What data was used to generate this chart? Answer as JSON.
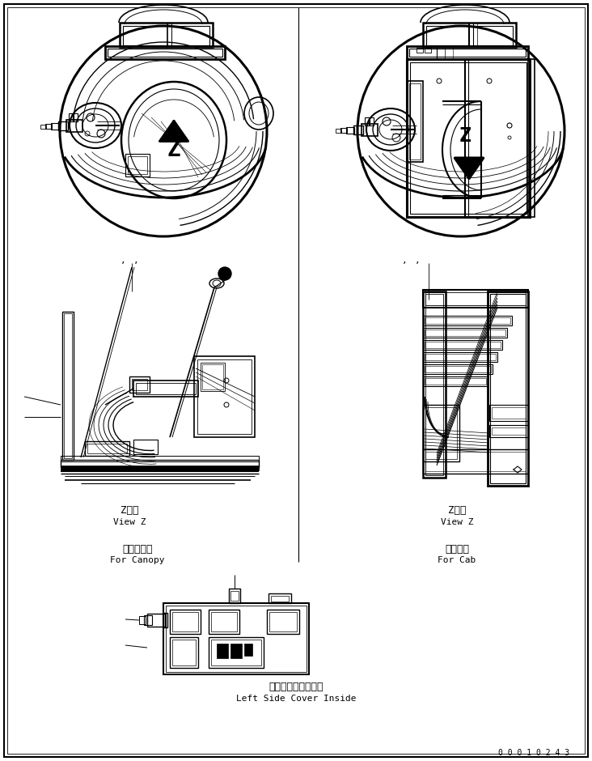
{
  "bg_color": "#ffffff",
  "line_color": "#000000",
  "fig_width": 7.32,
  "fig_height": 9.4,
  "labels": {
    "for_canopy_jp": "キャノピ用",
    "for_canopy_en": "For Canopy",
    "for_cab_jp": "キャブ用",
    "for_cab_en": "For Cab",
    "view_z_jp": "Z　視",
    "view_z_en": "View Z",
    "left_side_jp": "左サイドカバー内側",
    "left_side_en": "Left Side Cover Inside",
    "page_num": "0 0 0 1 0 2 4 3"
  }
}
